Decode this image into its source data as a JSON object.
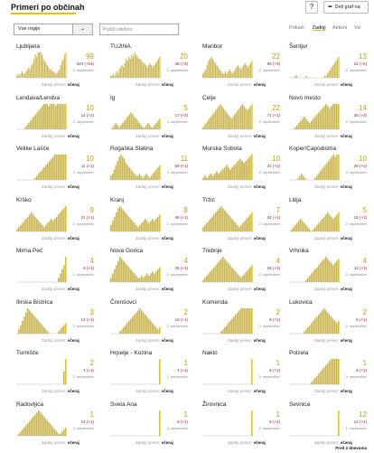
{
  "header": {
    "title": "Primeri po občinah",
    "help_label": "?",
    "share_label": "Deli graf na"
  },
  "controls": {
    "region_value": "Vse regije",
    "search_placeholder": "Poišči občino",
    "tabs": [
      "Prikaži:",
      "Zadnji",
      "Aktivni",
      "Vsi"
    ]
  },
  "footer": {
    "muted": "Zadnji primer:",
    "bold": "včeraj"
  },
  "bottom_nav": {
    "label": "Pred 2 dnevoma"
  },
  "colors": {
    "bar": "#c9b44d",
    "bar_last": "#e8c300",
    "delta": "#d0001c"
  },
  "cards": [
    {
      "name": "Ljubljana",
      "big": "99",
      "sub": "344",
      "delta": "(+14)",
      "date": "2. september",
      "bars": [
        1,
        2,
        1,
        2,
        3,
        2,
        2,
        3,
        4,
        5,
        4,
        6,
        7,
        9,
        11,
        10,
        12,
        14,
        13,
        11,
        9,
        8,
        7,
        6,
        5,
        4,
        4,
        3,
        3,
        2,
        2,
        3,
        4,
        6,
        8,
        9,
        11,
        12
      ]
    },
    {
      "name": "TUJINA",
      "big": "20",
      "sub": "48",
      "delta": "(+3)",
      "date": "1. september",
      "bars": [
        1,
        1,
        2,
        1,
        3,
        2,
        4,
        5,
        6,
        5,
        7,
        9,
        8,
        10,
        9,
        11,
        10,
        12,
        11,
        10,
        9,
        9,
        8,
        7,
        7,
        6,
        5,
        6,
        7,
        6,
        5,
        6,
        7,
        8,
        9,
        10
      ]
    },
    {
      "name": "Maribor",
      "big": "22",
      "sub": "88",
      "delta": "(+4)",
      "date": "2. september",
      "bars": [
        2,
        3,
        4,
        6,
        8,
        9,
        10,
        9,
        8,
        7,
        6,
        5,
        4,
        3,
        2,
        2,
        3,
        2,
        3,
        4,
        3,
        2,
        3,
        4,
        5,
        6,
        5,
        4,
        5,
        6,
        7,
        6,
        5,
        6,
        7,
        8
      ]
    },
    {
      "name": "Šentjur",
      "big": "13",
      "sub": "22",
      "delta": "(+2)",
      "date": "2. september",
      "bars": [
        0,
        0,
        0,
        0,
        1,
        1,
        0,
        0,
        0,
        0,
        0,
        0,
        1,
        0,
        0,
        0,
        0,
        0,
        0,
        0,
        0,
        0,
        0,
        0,
        0,
        1,
        1,
        2,
        3,
        4,
        5,
        6,
        7,
        8,
        9,
        10
      ]
    },
    {
      "name": "Lendava/Lendva",
      "big": "10",
      "sub": "14",
      "delta": "(+2)",
      "date": "2. september",
      "bars": [
        0,
        0,
        0,
        0,
        0,
        1,
        2,
        3,
        4,
        5,
        6,
        7,
        8,
        9,
        10,
        11,
        12,
        12,
        12,
        11,
        12,
        12,
        12,
        11,
        12,
        12,
        12,
        12,
        12,
        12
      ]
    },
    {
      "name": "Ig",
      "big": "5",
      "sub": "17",
      "delta": "(+2)",
      "date": "2. september",
      "bars": [
        0,
        1,
        2,
        3,
        2,
        1,
        2,
        3,
        4,
        5,
        6,
        7,
        8,
        7,
        6,
        5,
        4,
        3,
        2,
        1,
        1,
        2,
        3,
        2,
        1,
        1,
        2,
        3,
        4,
        5
      ]
    },
    {
      "name": "Celje",
      "big": "22",
      "sub": "71",
      "delta": "(+1)",
      "date": "2. september",
      "bars": [
        1,
        2,
        3,
        4,
        5,
        6,
        7,
        8,
        9,
        10,
        11,
        12,
        11,
        10,
        9,
        8,
        7,
        6,
        5,
        6,
        7,
        8,
        9,
        10,
        11,
        12,
        11,
        10,
        9,
        10,
        11,
        12
      ]
    },
    {
      "name": "Novo mesto",
      "big": "14",
      "sub": "28",
      "delta": "(+2)",
      "date": "2. september",
      "bars": [
        0,
        0,
        0,
        1,
        2,
        3,
        4,
        5,
        6,
        5,
        4,
        3,
        4,
        5,
        6,
        7,
        8,
        9,
        10,
        11,
        12,
        11,
        10,
        11,
        12,
        12,
        12,
        12
      ]
    },
    {
      "name": "Velike Lašče",
      "big": "10",
      "sub": "11",
      "delta": "(+1)",
      "date": "2. september",
      "bars": [
        0,
        0,
        0,
        0,
        0,
        0,
        0,
        0,
        0,
        0,
        1,
        2,
        3,
        4,
        5,
        6,
        7,
        8,
        9,
        10,
        11,
        12,
        12,
        12,
        12,
        12,
        12,
        12
      ]
    },
    {
      "name": "Rogaška Slatina",
      "big": "11",
      "sub": "69",
      "delta": "(+1)",
      "date": "2. september",
      "bars": [
        2,
        3,
        5,
        7,
        9,
        11,
        12,
        11,
        10,
        8,
        7,
        6,
        5,
        4,
        3,
        2,
        2,
        3,
        2,
        1,
        2,
        3,
        2,
        1,
        2,
        3,
        4,
        5,
        6,
        7
      ]
    },
    {
      "name": "Murska Sobota",
      "big": "10",
      "sub": "31",
      "delta": "(+1)",
      "date": "2. september",
      "bars": [
        1,
        2,
        1,
        2,
        3,
        2,
        3,
        4,
        3,
        4,
        5,
        6,
        7,
        6,
        5,
        6,
        7,
        8,
        9,
        10,
        9,
        8,
        9,
        10,
        11,
        12
      ]
    },
    {
      "name": "Koper/Capodistria",
      "big": "10",
      "sub": "29",
      "delta": "(+1)",
      "date": "2. september",
      "bars": [
        0,
        0,
        0,
        0,
        0,
        1,
        2,
        3,
        2,
        1,
        0,
        0,
        0,
        0,
        0,
        1,
        2,
        3,
        4,
        5,
        6,
        7,
        8,
        9,
        10,
        11,
        12,
        11,
        12,
        12
      ]
    },
    {
      "name": "Krško",
      "big": "9",
      "sub": "21",
      "delta": "(+1)",
      "date": "2. september",
      "bars": [
        1,
        2,
        3,
        4,
        5,
        6,
        7,
        8,
        9,
        8,
        7,
        6,
        5,
        4,
        3,
        2,
        3,
        4,
        5,
        6,
        5,
        6,
        7,
        8,
        9,
        10,
        11,
        12
      ]
    },
    {
      "name": "Kranj",
      "big": "8",
      "sub": "46",
      "delta": "(+1)",
      "date": "2. september",
      "bars": [
        3,
        5,
        7,
        9,
        11,
        12,
        11,
        10,
        9,
        8,
        7,
        6,
        5,
        4,
        3,
        2,
        3,
        4,
        5,
        6,
        5,
        4,
        5,
        6,
        5,
        6,
        7,
        8
      ]
    },
    {
      "name": "Tržič",
      "big": "7",
      "sub": "24",
      "delta": "(+1)",
      "date": "2. september",
      "bars": [
        2,
        3,
        4,
        5,
        6,
        7,
        8,
        9,
        10,
        11,
        12,
        11,
        10,
        9,
        8,
        7,
        6,
        5,
        4,
        3,
        2,
        3,
        4,
        5,
        6,
        7,
        8,
        9
      ]
    },
    {
      "name": "Litija",
      "big": "5",
      "sub": "18",
      "delta": "(+1)",
      "date": "2. september",
      "bars": [
        0,
        1,
        2,
        3,
        4,
        5,
        6,
        5,
        4,
        3,
        2,
        1,
        0,
        1,
        2,
        3,
        4,
        5,
        6,
        7,
        8,
        9,
        8,
        7,
        6,
        7,
        8,
        9
      ]
    },
    {
      "name": "Mirna Peč",
      "big": "4",
      "sub": "5",
      "delta": "(+1)",
      "date": "2. september",
      "bars": [
        0,
        0,
        0,
        0,
        0,
        0,
        0,
        0,
        0,
        0,
        0,
        0,
        0,
        0,
        0,
        0,
        0,
        0,
        0,
        0,
        0,
        0,
        0,
        2,
        4,
        6,
        8,
        12
      ]
    },
    {
      "name": "Nova Gorica",
      "big": "4",
      "sub": "25",
      "delta": "(+1)",
      "date": "2. september",
      "bars": [
        2,
        4,
        6,
        8,
        10,
        12,
        11,
        10,
        9,
        8,
        7,
        6,
        5,
        4,
        3,
        2,
        2,
        3,
        2,
        3,
        4,
        3,
        4,
        5,
        4,
        5,
        6,
        7
      ]
    },
    {
      "name": "Trebnje",
      "big": "4",
      "sub": "26",
      "delta": "(+1)",
      "date": "2. september",
      "bars": [
        1,
        2,
        3,
        4,
        5,
        6,
        7,
        8,
        9,
        10,
        11,
        12,
        11,
        10,
        9,
        8,
        7,
        6,
        5,
        4,
        3,
        2,
        3,
        4,
        5,
        6,
        7,
        8
      ]
    },
    {
      "name": "Vrhnika",
      "big": "4",
      "sub": "11",
      "delta": "(+1)",
      "date": "2. september",
      "bars": [
        0,
        0,
        0,
        0,
        0,
        0,
        0,
        0,
        0,
        1,
        2,
        3,
        4,
        5,
        6,
        7,
        8,
        9,
        10,
        11,
        12,
        11,
        10,
        9,
        8,
        9,
        10,
        11
      ]
    },
    {
      "name": "Ilirska Bistrica",
      "big": "3",
      "sub": "13",
      "delta": "(+1)",
      "date": "2. september",
      "bars": [
        0,
        2,
        4,
        6,
        8,
        10,
        12,
        11,
        10,
        9,
        8,
        7,
        6,
        5,
        4,
        3,
        2,
        1,
        0,
        0,
        0,
        0,
        0,
        1,
        2,
        3,
        4,
        5
      ]
    },
    {
      "name": "Črenšovci",
      "big": "2",
      "sub": "10",
      "delta": "(+1)",
      "date": "2. september",
      "bars": [
        0,
        0,
        0,
        0,
        0,
        1,
        2,
        3,
        4,
        5,
        6,
        7,
        8,
        9,
        10,
        11,
        12,
        11,
        10,
        9,
        8,
        7,
        6,
        5,
        4,
        3,
        2,
        3
      ]
    },
    {
      "name": "Komenda",
      "big": "2",
      "sub": "8",
      "delta": "(+1)",
      "date": "2. september",
      "bars": [
        0,
        0,
        0,
        0,
        0,
        0,
        0,
        0,
        0,
        0,
        1,
        2,
        3,
        4,
        5,
        6,
        7,
        8,
        9,
        10,
        11,
        12,
        12,
        12,
        12,
        12,
        12,
        12
      ]
    },
    {
      "name": "Lukovica",
      "big": "2",
      "sub": "5",
      "delta": "(+1)",
      "date": "2. september",
      "bars": [
        0,
        0,
        0,
        0,
        0,
        0,
        0,
        0,
        1,
        2,
        3,
        4,
        5,
        6,
        7,
        8,
        9,
        10,
        11,
        12,
        11,
        10,
        9,
        8,
        7,
        6,
        5,
        6
      ]
    },
    {
      "name": "Turnišče",
      "big": "2",
      "sub": "4",
      "delta": "(+1)",
      "date": "2. september",
      "bars": [
        0,
        0,
        0,
        0,
        0,
        0,
        0,
        0,
        0,
        0,
        0,
        0,
        0,
        0,
        0,
        0,
        0,
        0,
        0,
        0,
        0,
        0,
        0,
        0,
        0,
        0,
        6,
        12
      ]
    },
    {
      "name": "Hrpelje - Kozina",
      "big": "1",
      "sub": "4",
      "delta": "(+1)",
      "date": "2. september",
      "bars": [
        0,
        0,
        0,
        0,
        0,
        0,
        0,
        0,
        0,
        0,
        0,
        0,
        0,
        0,
        0,
        0,
        0,
        0,
        0,
        0,
        0,
        0,
        0,
        0,
        0,
        0,
        0,
        12
      ]
    },
    {
      "name": "Nakló",
      "big": "1",
      "sub": "6",
      "delta": "(+1)",
      "date": "2. september",
      "bars": [
        0,
        0,
        0,
        0,
        0,
        0,
        0,
        0,
        0,
        0,
        0,
        0,
        0,
        0,
        0,
        0,
        0,
        0,
        0,
        0,
        0,
        0,
        0,
        0,
        0,
        0,
        0,
        12
      ]
    },
    {
      "name": "Polzela",
      "big": "1",
      "sub": "6",
      "delta": "(+1)",
      "date": "2. september",
      "bars": [
        0,
        0,
        0,
        0,
        0,
        0,
        0,
        0,
        0,
        0,
        0,
        0,
        1,
        2,
        3,
        4,
        5,
        6,
        7,
        8,
        9,
        10,
        11,
        12,
        12,
        12,
        12,
        12
      ]
    },
    {
      "name": "Radovljica",
      "big": "1",
      "sub": "14",
      "delta": "(+1)",
      "date": "2. september",
      "bars": [
        0,
        1,
        2,
        3,
        4,
        5,
        6,
        7,
        8,
        9,
        10,
        11,
        12,
        11,
        10,
        9,
        8,
        7,
        6,
        5,
        4,
        3,
        2,
        1,
        1,
        2,
        3,
        4
      ]
    },
    {
      "name": "Sveta Ana",
      "big": "1",
      "sub": "9",
      "delta": "(+1)",
      "date": "2. september",
      "bars": [
        0,
        0,
        0,
        0,
        0,
        0,
        0,
        0,
        0,
        0,
        0,
        0,
        0,
        0,
        0,
        0,
        0,
        0,
        0,
        0,
        0,
        0,
        0,
        0,
        0,
        0,
        0,
        12
      ]
    },
    {
      "name": "Žirovnica",
      "big": "1",
      "sub": "6",
      "delta": "(+1)",
      "date": "2. september",
      "bars": [
        0,
        0,
        0,
        0,
        0,
        0,
        0,
        0,
        0,
        0,
        0,
        0,
        0,
        0,
        0,
        0,
        0,
        0,
        0,
        0,
        0,
        0,
        0,
        0,
        0,
        0,
        0,
        12
      ]
    },
    {
      "name": "Sevnica",
      "big": "12",
      "sub": "12",
      "delta": "(+1)",
      "date": "1. september",
      "bars": [
        0,
        0,
        0,
        0,
        0,
        0,
        0,
        0,
        0,
        0,
        0,
        0,
        0,
        0,
        0,
        0,
        0,
        0,
        0,
        0,
        0,
        0,
        0,
        0,
        0,
        0,
        0,
        12
      ]
    }
  ]
}
